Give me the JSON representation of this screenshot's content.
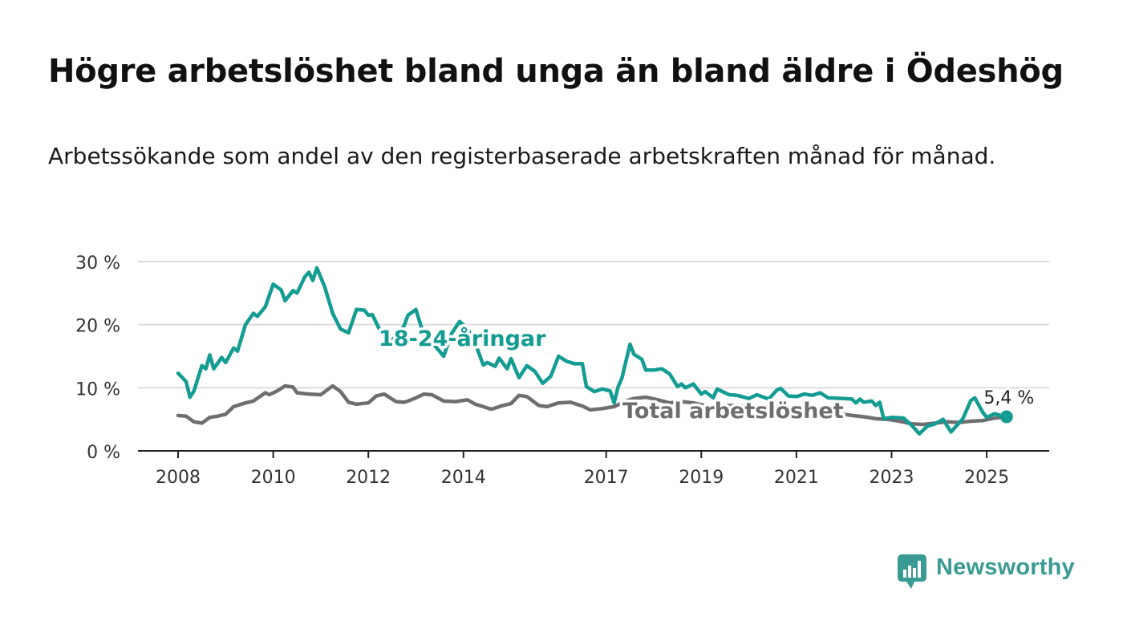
{
  "title": "Högre arbetslöshet bland unga än bland äldre i Ödeshög",
  "subtitle": "Arbetssökande som andel av den registerbaserade arbetskraften månad för månad.",
  "brand": {
    "name": "Newsworthy",
    "icon": "newsworthy-logo-icon",
    "color": "#3a9b94"
  },
  "chart_data": {
    "type": "line",
    "y_tick_labels": [
      "0 %",
      "10 %",
      "20 %",
      "30 %"
    ],
    "y_ticks": [
      0,
      10,
      20,
      30
    ],
    "ylim": [
      0,
      30
    ],
    "x_tick_labels": [
      "2008",
      "2010",
      "2012",
      "2014",
      "2017",
      "2019",
      "2021",
      "2023",
      "2025"
    ],
    "xlim": [
      "2008-01",
      "2025-06"
    ],
    "grid": true,
    "end_label": "5,4 %",
    "series": [
      {
        "name": "18-24-åringar",
        "color": "#139c92",
        "points": [
          [
            "2008-01",
            12.3
          ],
          [
            "2008-03",
            11.0
          ],
          [
            "2008-04",
            8.5
          ],
          [
            "2008-05",
            9.5
          ],
          [
            "2008-07",
            13.5
          ],
          [
            "2008-08",
            13.0
          ],
          [
            "2008-09",
            15.2
          ],
          [
            "2008-10",
            13.0
          ],
          [
            "2008-12",
            14.8
          ],
          [
            "2009-01",
            14.0
          ],
          [
            "2009-03",
            16.3
          ],
          [
            "2009-04",
            15.8
          ],
          [
            "2009-06",
            20.0
          ],
          [
            "2009-08",
            21.8
          ],
          [
            "2009-09",
            21.3
          ],
          [
            "2009-11",
            22.8
          ],
          [
            "2010-01",
            26.4
          ],
          [
            "2010-03",
            25.5
          ],
          [
            "2010-04",
            23.8
          ],
          [
            "2010-06",
            25.4
          ],
          [
            "2010-07",
            25.0
          ],
          [
            "2010-09",
            27.6
          ],
          [
            "2010-10",
            28.3
          ],
          [
            "2010-11",
            27.0
          ],
          [
            "2010-12",
            29.0
          ],
          [
            "2011-02",
            26.0
          ],
          [
            "2011-04",
            21.8
          ],
          [
            "2011-06",
            19.3
          ],
          [
            "2011-08",
            18.7
          ],
          [
            "2011-10",
            22.4
          ],
          [
            "2011-12",
            22.3
          ],
          [
            "2012-01",
            21.5
          ],
          [
            "2012-02",
            21.6
          ],
          [
            "2012-04",
            19.0
          ],
          [
            "2012-07",
            17.5
          ],
          [
            "2012-10",
            19.8
          ],
          [
            "2012-11",
            21.5
          ],
          [
            "2013-01",
            22.4
          ],
          [
            "2013-03",
            18.3
          ],
          [
            "2013-06",
            16.5
          ],
          [
            "2013-08",
            15.0
          ],
          [
            "2013-10",
            18.6
          ],
          [
            "2013-12",
            20.5
          ],
          [
            "2014-02",
            19.4
          ],
          [
            "2014-04",
            17.0
          ],
          [
            "2014-06",
            13.6
          ],
          [
            "2014-07",
            14.0
          ],
          [
            "2014-09",
            13.4
          ],
          [
            "2014-10",
            14.7
          ],
          [
            "2014-12",
            13.0
          ],
          [
            "2015-01",
            14.6
          ],
          [
            "2015-03",
            11.6
          ],
          [
            "2015-05",
            13.5
          ],
          [
            "2015-07",
            12.6
          ],
          [
            "2015-09",
            10.7
          ],
          [
            "2015-11",
            11.8
          ],
          [
            "2016-01",
            15.0
          ],
          [
            "2016-03",
            14.2
          ],
          [
            "2016-05",
            13.8
          ],
          [
            "2016-07",
            13.8
          ],
          [
            "2016-08",
            10.2
          ],
          [
            "2016-10",
            9.4
          ],
          [
            "2016-12",
            9.8
          ],
          [
            "2017-02",
            9.5
          ],
          [
            "2017-03",
            7.6
          ],
          [
            "2017-04",
            10.1
          ],
          [
            "2017-05",
            11.6
          ],
          [
            "2017-07",
            16.9
          ],
          [
            "2017-08",
            15.3
          ],
          [
            "2017-10",
            14.5
          ],
          [
            "2017-11",
            12.8
          ],
          [
            "2018-01",
            12.8
          ],
          [
            "2018-03",
            13.0
          ],
          [
            "2018-05",
            12.2
          ],
          [
            "2018-07",
            10.2
          ],
          [
            "2018-08",
            10.6
          ],
          [
            "2018-09",
            10.0
          ],
          [
            "2018-11",
            10.6
          ],
          [
            "2019-01",
            9.0
          ],
          [
            "2019-02",
            9.4
          ],
          [
            "2019-04",
            8.4
          ],
          [
            "2019-05",
            9.8
          ],
          [
            "2019-06",
            9.5
          ],
          [
            "2019-08",
            8.9
          ],
          [
            "2019-10",
            8.8
          ],
          [
            "2020-01",
            8.3
          ],
          [
            "2020-03",
            8.9
          ],
          [
            "2020-06",
            8.2
          ],
          [
            "2020-08",
            9.6
          ],
          [
            "2020-09",
            9.9
          ],
          [
            "2020-11",
            8.7
          ],
          [
            "2021-01",
            8.6
          ],
          [
            "2021-03",
            9.0
          ],
          [
            "2021-05",
            8.8
          ],
          [
            "2021-07",
            9.2
          ],
          [
            "2021-09",
            8.4
          ],
          [
            "2022-01",
            8.3
          ],
          [
            "2022-03",
            8.2
          ],
          [
            "2022-04",
            7.6
          ],
          [
            "2022-05",
            8.2
          ],
          [
            "2022-06",
            7.7
          ],
          [
            "2022-08",
            7.9
          ],
          [
            "2022-09",
            7.2
          ],
          [
            "2022-10",
            7.7
          ],
          [
            "2022-11",
            5.1
          ],
          [
            "2023-01",
            5.3
          ],
          [
            "2023-04",
            5.2
          ],
          [
            "2023-06",
            4.1
          ],
          [
            "2023-08",
            2.7
          ],
          [
            "2023-10",
            3.9
          ],
          [
            "2023-12",
            4.3
          ],
          [
            "2024-02",
            5.0
          ],
          [
            "2024-04",
            3.0
          ],
          [
            "2024-07",
            5.1
          ],
          [
            "2024-09",
            8.0
          ],
          [
            "2024-10",
            8.4
          ],
          [
            "2024-12",
            6.1
          ],
          [
            "2025-01",
            5.3
          ],
          [
            "2025-03",
            5.9
          ],
          [
            "2025-05",
            5.5
          ],
          [
            "2025-06",
            5.4
          ]
        ]
      },
      {
        "name": "Total arbetslöshet",
        "color": "#6e6e70",
        "points": [
          [
            "2008-01",
            5.6
          ],
          [
            "2008-03",
            5.5
          ],
          [
            "2008-05",
            4.6
          ],
          [
            "2008-07",
            4.4
          ],
          [
            "2008-09",
            5.3
          ],
          [
            "2008-11",
            5.5
          ],
          [
            "2009-01",
            5.8
          ],
          [
            "2009-03",
            7.0
          ],
          [
            "2009-06",
            7.6
          ],
          [
            "2009-08",
            7.9
          ],
          [
            "2009-11",
            9.2
          ],
          [
            "2009-12",
            8.9
          ],
          [
            "2010-02",
            9.5
          ],
          [
            "2010-04",
            10.3
          ],
          [
            "2010-06",
            10.1
          ],
          [
            "2010-07",
            9.2
          ],
          [
            "2010-10",
            9.0
          ],
          [
            "2011-01",
            8.9
          ],
          [
            "2011-04",
            10.3
          ],
          [
            "2011-06",
            9.4
          ],
          [
            "2011-08",
            7.7
          ],
          [
            "2011-10",
            7.4
          ],
          [
            "2012-01",
            7.6
          ],
          [
            "2012-03",
            8.7
          ],
          [
            "2012-05",
            9.0
          ],
          [
            "2012-08",
            7.8
          ],
          [
            "2012-10",
            7.7
          ],
          [
            "2012-11",
            7.9
          ],
          [
            "2013-01",
            8.4
          ],
          [
            "2013-03",
            9.0
          ],
          [
            "2013-05",
            8.9
          ],
          [
            "2013-08",
            7.9
          ],
          [
            "2013-11",
            7.8
          ],
          [
            "2014-02",
            8.1
          ],
          [
            "2014-04",
            7.4
          ],
          [
            "2014-06",
            7.0
          ],
          [
            "2014-08",
            6.6
          ],
          [
            "2014-11",
            7.2
          ],
          [
            "2015-01",
            7.5
          ],
          [
            "2015-03",
            8.8
          ],
          [
            "2015-05",
            8.6
          ],
          [
            "2015-08",
            7.2
          ],
          [
            "2015-10",
            7.0
          ],
          [
            "2016-01",
            7.6
          ],
          [
            "2016-04",
            7.7
          ],
          [
            "2016-07",
            7.1
          ],
          [
            "2016-09",
            6.5
          ],
          [
            "2016-12",
            6.7
          ],
          [
            "2017-03",
            7.0
          ],
          [
            "2017-06",
            7.9
          ],
          [
            "2017-08",
            8.3
          ],
          [
            "2017-11",
            8.5
          ],
          [
            "2018-02",
            8.1
          ],
          [
            "2018-05",
            7.6
          ],
          [
            "2018-08",
            7.8
          ],
          [
            "2018-11",
            7.6
          ],
          [
            "2019-02",
            7.2
          ],
          [
            "2019-06",
            7.2
          ],
          [
            "2019-10",
            7.2
          ],
          [
            "2020-03",
            7.0
          ],
          [
            "2020-07",
            7.0
          ],
          [
            "2020-11",
            6.7
          ],
          [
            "2021-03",
            6.6
          ],
          [
            "2021-07",
            6.3
          ],
          [
            "2021-11",
            6.0
          ],
          [
            "2022-03",
            5.6
          ],
          [
            "2022-06",
            5.4
          ],
          [
            "2022-09",
            5.1
          ],
          [
            "2022-12",
            5.0
          ],
          [
            "2023-03",
            4.7
          ],
          [
            "2023-06",
            4.3
          ],
          [
            "2023-09",
            4.2
          ],
          [
            "2023-12",
            4.4
          ],
          [
            "2024-03",
            4.6
          ],
          [
            "2024-06",
            4.5
          ],
          [
            "2024-09",
            4.7
          ],
          [
            "2024-12",
            4.8
          ],
          [
            "2025-03",
            5.2
          ],
          [
            "2025-06",
            5.4
          ]
        ]
      }
    ]
  }
}
